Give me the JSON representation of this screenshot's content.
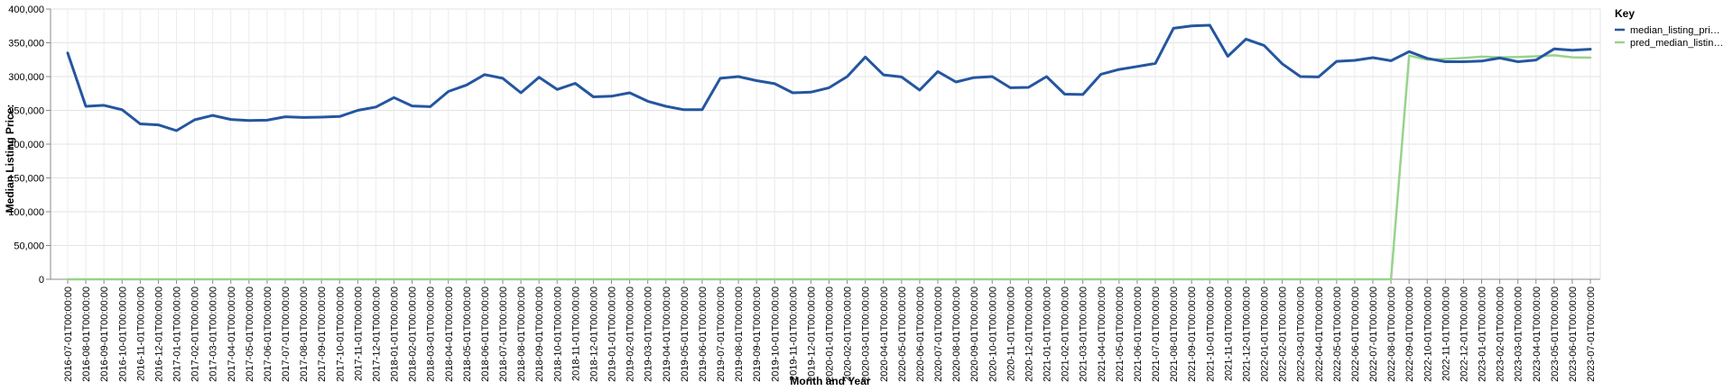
{
  "chart_data": {
    "type": "line",
    "xlabel": "Month and Year",
    "ylabel": "Median Listing Price:",
    "ylim": [
      0,
      400000
    ],
    "yticks": [
      0,
      50000,
      100000,
      150000,
      200000,
      250000,
      300000,
      350000,
      400000
    ],
    "ytick_labels": [
      "0",
      "50,000",
      "100,000",
      "150,000",
      "200,000",
      "250,000",
      "300,000",
      "350,000",
      "400,000"
    ],
    "grid": true,
    "legend": {
      "title": "Key",
      "position": "top-right",
      "entries": [
        {
          "label": "median_listing_pri…",
          "color": "#2456a0"
        },
        {
          "label": "pred_median_listin…",
          "color": "#98d38c"
        }
      ]
    },
    "x": [
      "2016-07-01T00:00:00",
      "2016-08-01T00:00:00",
      "2016-09-01T00:00:00",
      "2016-10-01T00:00:00",
      "2016-11-01T00:00:00",
      "2016-12-01T00:00:00",
      "2017-01-01T00:00:00",
      "2017-02-01T00:00:00",
      "2017-03-01T00:00:00",
      "2017-04-01T00:00:00",
      "2017-05-01T00:00:00",
      "2017-06-01T00:00:00",
      "2017-07-01T00:00:00",
      "2017-08-01T00:00:00",
      "2017-09-01T00:00:00",
      "2017-10-01T00:00:00",
      "2017-11-01T00:00:00",
      "2017-12-01T00:00:00",
      "2018-01-01T00:00:00",
      "2018-02-01T00:00:00",
      "2018-03-01T00:00:00",
      "2018-04-01T00:00:00",
      "2018-05-01T00:00:00",
      "2018-06-01T00:00:00",
      "2018-07-01T00:00:00",
      "2018-08-01T00:00:00",
      "2018-09-01T00:00:00",
      "2018-10-01T00:00:00",
      "2018-11-01T00:00:00",
      "2018-12-01T00:00:00",
      "2019-01-01T00:00:00",
      "2019-02-01T00:00:00",
      "2019-03-01T00:00:00",
      "2019-04-01T00:00:00",
      "2019-05-01T00:00:00",
      "2019-06-01T00:00:00",
      "2019-07-01T00:00:00",
      "2019-08-01T00:00:00",
      "2019-09-01T00:00:00",
      "2019-10-01T00:00:00",
      "2019-11-01T00:00:00",
      "2019-12-01T00:00:00",
      "2020-01-01T00:00:00",
      "2020-02-01T00:00:00",
      "2020-03-01T00:00:00",
      "2020-04-01T00:00:00",
      "2020-05-01T00:00:00",
      "2020-06-01T00:00:00",
      "2020-07-01T00:00:00",
      "2020-08-01T00:00:00",
      "2020-09-01T00:00:00",
      "2020-10-01T00:00:00",
      "2020-11-01T00:00:00",
      "2020-12-01T00:00:00",
      "2021-01-01T00:00:00",
      "2021-02-01T00:00:00",
      "2021-03-01T00:00:00",
      "2021-04-01T00:00:00",
      "2021-05-01T00:00:00",
      "2021-06-01T00:00:00",
      "2021-07-01T00:00:00",
      "2021-08-01T00:00:00",
      "2021-09-01T00:00:00",
      "2021-10-01T00:00:00",
      "2021-11-01T00:00:00",
      "2021-12-01T00:00:00",
      "2022-01-01T00:00:00",
      "2022-02-01T00:00:00",
      "2022-03-01T00:00:00",
      "2022-04-01T00:00:00",
      "2022-05-01T00:00:00",
      "2022-06-01T00:00:00",
      "2022-07-01T00:00:00",
      "2022-08-01T00:00:00",
      "2022-09-01T00:00:00",
      "2022-10-01T00:00:00",
      "2022-11-01T00:00:00",
      "2022-12-01T00:00:00",
      "2023-01-01T00:00:00",
      "2023-02-01T00:00:00",
      "2023-03-01T00:00:00",
      "2023-04-01T00:00:00",
      "2023-05-01T00:00:00",
      "2023-06-01T00:00:00",
      "2023-07-01T00:00:00"
    ],
    "series": [
      {
        "name": "median_listing_pri…",
        "color": "#2456a0",
        "values": [
          335000,
          256000,
          257500,
          251000,
          230000,
          228500,
          220000,
          236000,
          242500,
          236500,
          235000,
          235500,
          240500,
          239500,
          240000,
          241000,
          250000,
          255000,
          269000,
          256500,
          255500,
          278000,
          287500,
          303000,
          297500,
          276000,
          299000,
          281000,
          290000,
          270000,
          271000,
          276000,
          263500,
          256000,
          251000,
          251000,
          297500,
          300000,
          294000,
          289500,
          276000,
          277000,
          283500,
          300000,
          329000,
          302500,
          299500,
          280000,
          307500,
          292000,
          298500,
          300000,
          283500,
          284000,
          300000,
          274000,
          273500,
          303500,
          310500,
          315000,
          319500,
          371500,
          375000,
          376000,
          330000,
          355500,
          346000,
          319000,
          300000,
          299500,
          322500,
          324000,
          328000,
          323500,
          337000,
          327000,
          322000,
          322000,
          323000,
          327500,
          322000,
          324500,
          341000,
          339000,
          340500
        ]
      },
      {
        "name": "pred_median_listin…",
        "color": "#98d38c",
        "values": [
          0,
          0,
          0,
          0,
          0,
          0,
          0,
          0,
          0,
          0,
          0,
          0,
          0,
          0,
          0,
          0,
          0,
          0,
          0,
          0,
          0,
          0,
          0,
          0,
          0,
          0,
          0,
          0,
          0,
          0,
          0,
          0,
          0,
          0,
          0,
          0,
          0,
          0,
          0,
          0,
          0,
          0,
          0,
          0,
          0,
          0,
          0,
          0,
          0,
          0,
          0,
          0,
          0,
          0,
          0,
          0,
          0,
          0,
          0,
          0,
          0,
          0,
          0,
          0,
          0,
          0,
          0,
          0,
          0,
          0,
          0,
          0,
          0,
          0,
          331000,
          325000,
          326000,
          327500,
          329500,
          328500,
          329000,
          330000,
          331500,
          328500,
          328000
        ]
      }
    ]
  }
}
